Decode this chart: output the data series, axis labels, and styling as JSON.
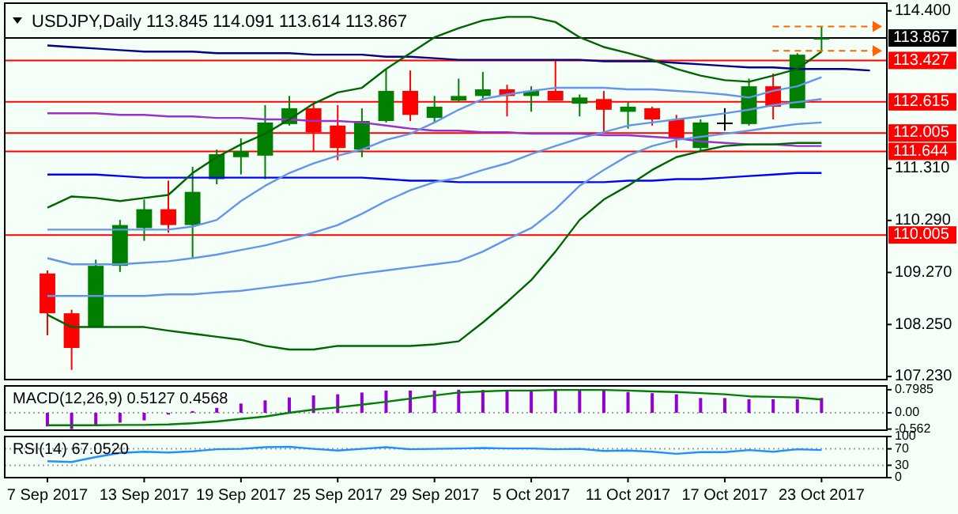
{
  "chart_data": [
    {
      "type": "candlestick",
      "title": "USDJPY,Daily 113.845 114.091 113.614 113.867",
      "tick_labels": "y",
      "ohlc": [
        [
          109.25,
          109.31,
          108.04,
          108.47
        ],
        [
          108.47,
          108.54,
          107.36,
          107.79
        ],
        [
          108.2,
          109.52,
          108.2,
          109.4
        ],
        [
          109.4,
          110.3,
          109.28,
          110.2
        ],
        [
          110.14,
          110.7,
          109.89,
          110.51
        ],
        [
          110.51,
          111.07,
          110.05,
          110.2
        ],
        [
          110.2,
          111.34,
          109.55,
          110.85
        ],
        [
          111.1,
          111.68,
          111.0,
          111.59
        ],
        [
          111.53,
          111.9,
          111.19,
          111.65
        ],
        [
          111.56,
          112.55,
          111.1,
          112.21
        ],
        [
          112.18,
          112.73,
          112.15,
          112.49
        ],
        [
          112.49,
          112.58,
          111.65,
          112.02
        ],
        [
          112.15,
          112.55,
          111.47,
          111.71
        ],
        [
          111.68,
          112.49,
          111.53,
          112.24
        ],
        [
          112.24,
          113.26,
          112.21,
          112.83
        ],
        [
          112.83,
          113.23,
          112.24,
          112.36
        ],
        [
          112.3,
          112.73,
          112.21,
          112.52
        ],
        [
          112.64,
          113.07,
          112.61,
          112.73
        ],
        [
          112.73,
          113.2,
          112.64,
          112.86
        ],
        [
          112.86,
          112.95,
          112.33,
          112.73
        ],
        [
          112.73,
          112.92,
          112.42,
          112.83
        ],
        [
          112.83,
          113.44,
          112.64,
          112.64
        ],
        [
          112.58,
          112.76,
          112.33,
          112.7
        ],
        [
          112.67,
          112.83,
          111.99,
          112.46
        ],
        [
          112.42,
          112.61,
          112.09,
          112.52
        ],
        [
          112.49,
          112.52,
          112.15,
          112.27
        ],
        [
          112.27,
          112.36,
          111.71,
          111.9
        ],
        [
          111.71,
          112.27,
          111.65,
          112.21
        ],
        [
          112.21,
          112.49,
          112.05,
          112.21
        ],
        [
          112.18,
          113.07,
          112.15,
          112.92
        ],
        [
          112.92,
          113.17,
          112.27,
          112.52
        ],
        [
          112.49,
          113.57,
          112.49,
          113.54
        ],
        [
          113.845,
          114.091,
          113.614,
          113.867
        ],
        null,
        null
      ],
      "colors": [
        "#ff0000",
        "#ff0000",
        "#008000",
        "#008000",
        "#008000",
        "#ff0000",
        "#008000",
        "#008000",
        "#008000",
        "#008000",
        "#008000",
        "#ff0000",
        "#ff0000",
        "#008000",
        "#008000",
        "#ff0000",
        "#008000",
        "#008000",
        "#008000",
        "#ff0000",
        "#008000",
        "#ff0000",
        "#008000",
        "#ff0000",
        "#008000",
        "#ff0000",
        "#ff0000",
        "#008000",
        "#000000",
        "#008000",
        "#ff0000",
        "#008000",
        "#008000",
        null,
        null
      ],
      "series": [
        {
          "type": "line",
          "color": "#00008b",
          "values": [
            113.72,
            113.69,
            113.66,
            113.63,
            113.6,
            113.6,
            113.6,
            113.57,
            113.57,
            113.57,
            113.57,
            113.54,
            113.54,
            113.54,
            113.5,
            113.5,
            113.47,
            113.44,
            113.44,
            113.44,
            113.44,
            113.44,
            113.44,
            113.41,
            113.41,
            113.41,
            113.38,
            113.35,
            113.32,
            113.29,
            113.29,
            113.26,
            113.26,
            113.26,
            113.23
          ]
        },
        {
          "type": "line",
          "color": "#9932cc",
          "values": [
            112.39,
            112.39,
            112.39,
            112.36,
            112.36,
            112.33,
            112.33,
            112.3,
            112.3,
            112.27,
            112.27,
            112.24,
            112.24,
            112.21,
            112.15,
            112.09,
            112.05,
            112.05,
            112.02,
            112.02,
            111.99,
            111.99,
            111.99,
            111.96,
            111.96,
            111.93,
            111.9,
            111.84,
            111.81,
            111.78,
            111.78,
            111.75,
            111.75,
            null,
            null
          ]
        },
        {
          "type": "line",
          "color": "#0000ff",
          "values": [
            111.19,
            111.19,
            111.19,
            111.16,
            111.13,
            111.13,
            111.13,
            111.13,
            111.13,
            111.13,
            111.13,
            111.13,
            111.13,
            111.13,
            111.1,
            111.07,
            111.07,
            111.04,
            111.04,
            111.04,
            111.04,
            111.04,
            111.04,
            111.04,
            111.07,
            111.07,
            111.1,
            111.1,
            111.13,
            111.16,
            111.19,
            111.22,
            111.22,
            null,
            null
          ]
        },
        {
          "type": "line",
          "color": "#6495ed",
          "values": [
            110.11,
            110.11,
            110.11,
            110.11,
            110.11,
            110.11,
            110.17,
            110.3,
            110.67,
            110.97,
            111.22,
            111.41,
            111.56,
            111.68,
            111.87,
            111.99,
            112.21,
            112.46,
            112.67,
            112.76,
            112.83,
            112.89,
            112.89,
            112.89,
            112.86,
            112.86,
            112.83,
            112.8,
            112.76,
            112.7,
            112.83,
            112.92,
            113.1,
            null,
            null
          ]
        },
        {
          "type": "line",
          "color": "#6495ed",
          "values": [
            109.55,
            109.43,
            109.43,
            109.43,
            109.46,
            109.49,
            109.55,
            109.62,
            109.71,
            109.8,
            109.92,
            110.05,
            110.2,
            110.42,
            110.67,
            110.88,
            111.04,
            111.13,
            111.28,
            111.41,
            111.59,
            111.75,
            111.9,
            112.02,
            112.15,
            112.21,
            112.27,
            112.33,
            112.39,
            112.46,
            112.55,
            112.61,
            112.67,
            null,
            null
          ]
        },
        {
          "type": "line",
          "color": "#6495ed",
          "values": [
            108.81,
            108.81,
            108.81,
            108.81,
            108.81,
            108.84,
            108.84,
            108.88,
            108.91,
            108.97,
            109.03,
            109.09,
            109.18,
            109.25,
            109.31,
            109.37,
            109.43,
            109.49,
            109.68,
            109.92,
            110.14,
            110.51,
            110.97,
            111.28,
            111.56,
            111.75,
            111.87,
            111.93,
            111.99,
            112.05,
            112.12,
            112.18,
            112.21,
            null,
            null
          ]
        },
        {
          "type": "line",
          "color": "#006400",
          "values": [
            110.54,
            110.76,
            110.73,
            110.67,
            110.73,
            110.79,
            111.22,
            111.53,
            111.78,
            111.99,
            112.27,
            112.58,
            112.8,
            112.89,
            113.26,
            113.57,
            113.88,
            114.06,
            114.21,
            114.28,
            114.28,
            114.18,
            113.88,
            113.69,
            113.57,
            113.44,
            113.26,
            113.13,
            113.04,
            113.01,
            113.13,
            113.26,
            113.6,
            null,
            null
          ]
        },
        {
          "type": "line",
          "color": "#006400",
          "values": [
            108.44,
            108.2,
            108.2,
            108.2,
            108.2,
            108.13,
            108.07,
            108.01,
            107.95,
            107.83,
            107.76,
            107.76,
            107.83,
            107.83,
            107.83,
            107.83,
            107.86,
            107.92,
            108.29,
            108.69,
            109.12,
            109.68,
            110.3,
            110.7,
            110.97,
            111.28,
            111.53,
            111.65,
            111.75,
            111.78,
            111.78,
            111.81,
            111.81,
            null,
            null
          ]
        }
      ],
      "ylim": [
        107.17,
        114.55
      ],
      "yticks": [
        {
          "value": 114.4,
          "label": "114.400"
        },
        {
          "value": 111.31,
          "label": "111.310"
        },
        {
          "value": 110.29,
          "label": "110.290"
        },
        {
          "value": 109.27,
          "label": "109.270"
        },
        {
          "value": 108.25,
          "label": "108.250"
        },
        {
          "value": 107.23,
          "label": "107.230"
        }
      ],
      "ref_lines": [
        {
          "axis": "y",
          "value": 113.867,
          "label": "113.867",
          "color": "#000000"
        },
        {
          "axis": "y",
          "value": 113.427,
          "label": "113.427",
          "color": "#ff0000"
        },
        {
          "axis": "y",
          "value": 112.615,
          "label": "112.615",
          "color": "#ff0000"
        },
        {
          "axis": "y",
          "value": 112.005,
          "label": "112.005",
          "color": "#ff0000"
        },
        {
          "axis": "y",
          "value": 111.644,
          "label": "111.644",
          "color": "#ff0000"
        },
        {
          "axis": "y",
          "value": 110.005,
          "label": "110.005",
          "color": "#ff0000"
        }
      ]
    },
    {
      "type": "bar",
      "title": "MACD(12,26,9) 0.5127 0.4568",
      "tick_labels": "y",
      "series": [
        {
          "color": "#9400d3",
          "values": [
            -0.47,
            -0.562,
            -0.43,
            -0.34,
            -0.26,
            -0.06,
            0.06,
            0.17,
            0.32,
            0.43,
            0.53,
            0.6,
            0.64,
            0.7,
            0.77,
            0.77,
            0.77,
            0.7985,
            0.79,
            0.79,
            0.79,
            0.79,
            0.78,
            0.77,
            0.72,
            0.68,
            0.64,
            0.51,
            0.51,
            0.47,
            0.47,
            0.47,
            0.5127,
            null,
            null
          ]
        },
        {
          "type": "line",
          "color": "#008000",
          "values": [
            -0.43,
            -0.43,
            -0.43,
            -0.42,
            -0.42,
            -0.4,
            -0.36,
            -0.3,
            -0.21,
            -0.13,
            0,
            0.11,
            0.19,
            0.28,
            0.38,
            0.49,
            0.6,
            0.7,
            0.74,
            0.77,
            0.77,
            0.79,
            0.79,
            0.79,
            0.77,
            0.74,
            0.72,
            0.68,
            0.64,
            0.57,
            0.55,
            0.53,
            0.4568,
            null,
            null
          ]
        }
      ],
      "ylim": [
        -0.6,
        0.93
      ],
      "yticks": [
        0.7985,
        {
          "value": 0,
          "label": "0.00"
        },
        -0.562
      ],
      "ref_lines": [
        {
          "axis": "y",
          "value": 0,
          "color": "#a0a0a0",
          "line_style": "dotted"
        }
      ]
    },
    {
      "type": "line",
      "title": "RSI(14) 67.0520",
      "color": "#1e90ff",
      "categories": [
        "7 Sep 2017",
        null,
        null,
        null,
        "13 Sep 2017",
        null,
        null,
        null,
        "19 Sep 2017",
        null,
        null,
        null,
        "25 Sep 2017",
        null,
        null,
        null,
        "29 Sep 2017",
        null,
        null,
        null,
        "5 Oct 2017",
        null,
        null,
        null,
        "11 Oct 2017",
        null,
        null,
        null,
        "17 Oct 2017",
        null,
        null,
        null,
        "23 Oct 2017",
        null,
        null
      ],
      "values": [
        40,
        38,
        50,
        60,
        63,
        61,
        64,
        69,
        70,
        74,
        75,
        70,
        66,
        70,
        74,
        69,
        70,
        71,
        72,
        71,
        71,
        69,
        70,
        65,
        66,
        63,
        58,
        62,
        62,
        67,
        63,
        69,
        67.052,
        null,
        null
      ],
      "ylim": [
        0,
        100
      ],
      "yticks": [
        100,
        70,
        30,
        0
      ],
      "ref_lines": [
        {
          "axis": "y",
          "value": 70,
          "color": "#a0a0a0",
          "line_style": "dotted"
        },
        {
          "axis": "y",
          "value": 30,
          "color": "#a0a0a0",
          "line_style": "dotted"
        }
      ]
    }
  ]
}
